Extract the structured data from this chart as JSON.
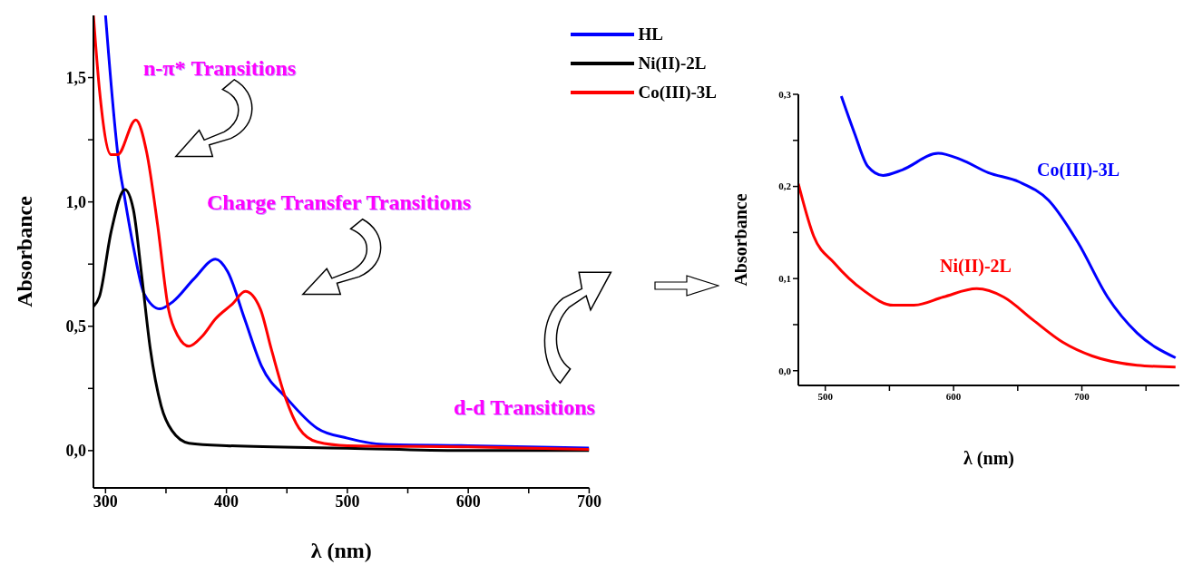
{
  "chart_data": [
    {
      "type": "line",
      "xlabel": "λ (nm)",
      "ylabel": "Absorbance",
      "xlim": [
        290,
        700
      ],
      "ylim": [
        -0.15,
        1.75
      ],
      "xticks": [
        300,
        {
          "value": 350,
          "label": null
        },
        400,
        {
          "value": 450,
          "label": null
        },
        500,
        {
          "value": 550,
          "label": null
        },
        600,
        {
          "value": 650,
          "label": null
        },
        700
      ],
      "yticks": [
        {
          "value": 0,
          "label": "0,0"
        },
        {
          "value": 0.25,
          "label": null
        },
        {
          "value": 0.5,
          "label": "0,5"
        },
        {
          "value": 0.75,
          "label": null
        },
        {
          "value": 1,
          "label": "1,0"
        },
        {
          "value": 1.25,
          "label": null
        },
        {
          "value": 1.5,
          "label": "1,5"
        }
      ],
      "legend": "top right",
      "marker": "none",
      "line_style": "solid",
      "annotations": [
        "n-π* Transitions",
        "Charge Transfer Transitions",
        "d-d Transitions"
      ],
      "series": [
        {
          "name": "HL",
          "color": "#0000ff",
          "x": [
            300,
            311.5,
            315,
            323,
            332,
            345,
            356,
            373,
            391,
            401,
            415,
            429,
            450,
            475,
            500,
            530,
            600,
            700
          ],
          "values": [
            1.75,
            1.14,
            1.04,
            0.82,
            0.63,
            0.57,
            0.6,
            0.69,
            0.77,
            0.72,
            0.53,
            0.34,
            0.21,
            0.09,
            0.05,
            0.025,
            0.02,
            0.01
          ]
        },
        {
          "name": "Ni(II)-2L",
          "color": "#000000",
          "x": [
            290,
            295,
            304.6,
            316,
            323,
            330,
            337,
            346,
            355,
            369,
            400,
            500,
            600,
            700
          ],
          "values": [
            0.58,
            0.62,
            0.88,
            1.05,
            0.97,
            0.7,
            0.41,
            0.18,
            0.08,
            0.03,
            0.02,
            0.01,
            0,
            0
          ]
        },
        {
          "name": "Co(III)-3L",
          "color": "#ff0000",
          "x": [
            290,
            295,
            304.6,
            310,
            325,
            334,
            343,
            352,
            360,
            369,
            380,
            391,
            405,
            415.6,
            428,
            437,
            449,
            460,
            475,
            500,
            600,
            700
          ],
          "values": [
            1.75,
            1.45,
            1.19,
            1.19,
            1.33,
            1.2,
            0.91,
            0.57,
            0.46,
            0.42,
            0.46,
            0.53,
            0.59,
            0.64,
            0.57,
            0.41,
            0.21,
            0.09,
            0.035,
            0.02,
            0.015,
            0.005
          ]
        }
      ]
    },
    {
      "type": "line",
      "xlabel": "λ (nm)",
      "ylabel": "Absorbance",
      "xlim": [
        479,
        776
      ],
      "ylim": [
        -0.016,
        0.3
      ],
      "xticks": [
        500,
        {
          "value": 550,
          "label": null
        },
        600,
        {
          "value": 650,
          "label": null
        },
        700,
        {
          "value": 750,
          "label": null
        }
      ],
      "yticks": [
        {
          "value": 0,
          "label": "0,0"
        },
        {
          "value": 0.05,
          "label": null
        },
        {
          "value": 0.1,
          "label": "0,1"
        },
        {
          "value": 0.15,
          "label": null
        },
        {
          "value": 0.2,
          "label": "0,2"
        },
        {
          "value": 0.25,
          "label": null
        },
        {
          "value": 0.3,
          "label": "0,3"
        }
      ],
      "legend": false,
      "marker": "none",
      "line_style": "solid",
      "series": [
        {
          "name": "Co(III)-3L",
          "color": "#0000ff",
          "x": [
            512.5,
            523,
            533,
            545,
            560,
            588,
            606,
            627,
            651,
            674,
            697,
            720,
            743,
            773
          ],
          "values": [
            0.298,
            0.257,
            0.222,
            0.212,
            0.218,
            0.236,
            0.229,
            0.215,
            0.205,
            0.185,
            0.139,
            0.08,
            0.041,
            0.014
          ]
        },
        {
          "name": "Ni(II)-2L",
          "color": "#ff0000",
          "x": [
            479,
            491,
            507,
            530,
            553,
            569,
            592,
            618,
            639,
            662,
            685,
            708,
            743,
            773
          ],
          "values": [
            0.203,
            0.146,
            0.117,
            0.087,
            0.071,
            0.071,
            0.08,
            0.089,
            0.08,
            0.055,
            0.031,
            0.016,
            0.006,
            0.004
          ]
        }
      ]
    }
  ]
}
